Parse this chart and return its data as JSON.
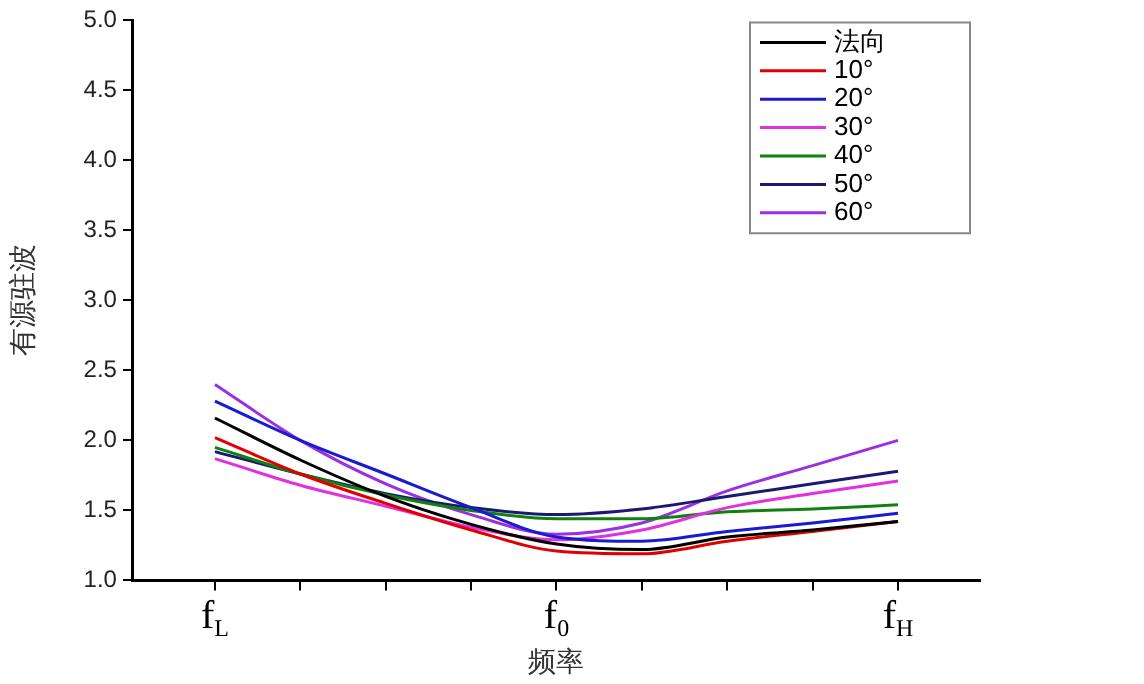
{
  "chart_data": {
    "type": "line",
    "xlabel": "频率",
    "ylabel": "有源驻波",
    "categories": [
      "f$_{L}$",
      null,
      null,
      null,
      "f$_{0}$",
      null,
      null,
      null,
      "f$_{H}$"
    ],
    "ylim": [
      1,
      5
    ],
    "yticks": [
      {
        "value": 1,
        "label": "1.0"
      },
      {
        "value": 1.5,
        "label": "1.5"
      },
      {
        "value": 2,
        "label": "2.0"
      },
      {
        "value": 2.5,
        "label": "2.5"
      },
      {
        "value": 3,
        "label": "3.0"
      },
      {
        "value": 3.5,
        "label": "3.5"
      },
      {
        "value": 4,
        "label": "4.0"
      },
      {
        "value": 4.5,
        "label": "4.5"
      },
      {
        "value": 5,
        "label": "5.0"
      }
    ],
    "series": [
      {
        "name": "法向",
        "color": "#000000",
        "values": [
          2.16,
          1.86,
          1.6,
          1.4,
          1.26,
          1.22,
          1.31,
          1.36,
          1.42
        ]
      },
      {
        "name": "10°",
        "color": "#e00000",
        "values": [
          2.02,
          1.76,
          1.55,
          1.36,
          1.21,
          1.19,
          1.28,
          1.35,
          1.42
        ]
      },
      {
        "name": "20°",
        "color": "#1a1ad0",
        "values": [
          2.28,
          2.0,
          1.76,
          1.52,
          1.31,
          1.28,
          1.35,
          1.41,
          1.48
        ]
      },
      {
        "name": "30°",
        "color": "#e030e0",
        "values": [
          1.87,
          1.68,
          1.53,
          1.38,
          1.29,
          1.36,
          1.52,
          1.62,
          1.71
        ]
      },
      {
        "name": "40°",
        "color": "#108010",
        "values": [
          1.95,
          1.76,
          1.61,
          1.5,
          1.44,
          1.44,
          1.49,
          1.51,
          1.54
        ]
      },
      {
        "name": "50°",
        "color": "#1a1a70",
        "values": [
          1.92,
          1.76,
          1.62,
          1.52,
          1.47,
          1.51,
          1.6,
          1.69,
          1.78
        ]
      },
      {
        "name": "60°",
        "color": "#9a30e0",
        "values": [
          2.4,
          2.0,
          1.69,
          1.47,
          1.33,
          1.41,
          1.64,
          1.82,
          2.0
        ]
      }
    ],
    "legend": "top right",
    "grid": false,
    "marker": "none",
    "line_style": "solid"
  }
}
